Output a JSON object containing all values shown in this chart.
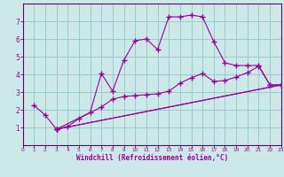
{
  "bg_color": "#cce8e8",
  "grid_color": "#99cccc",
  "line_color": "#990099",
  "xlabel": "Windchill (Refroidissement éolien,°C)",
  "xlabel_color": "#990099",
  "tick_color": "#990099",
  "spine_color": "#660066",
  "xlim": [
    0,
    23
  ],
  "ylim": [
    0,
    8
  ],
  "xtick_labels": [
    "0",
    "1",
    "2",
    "3",
    "4",
    "5",
    "6",
    "7",
    "8",
    "9",
    "10",
    "11",
    "12",
    "13",
    "14",
    "15",
    "16",
    "17",
    "18",
    "19",
    "20",
    "21",
    "22",
    "23"
  ],
  "xtick_vals": [
    0,
    1,
    2,
    3,
    4,
    5,
    6,
    7,
    8,
    9,
    10,
    11,
    12,
    13,
    14,
    15,
    16,
    17,
    18,
    19,
    20,
    21,
    22,
    23
  ],
  "ytick_vals": [
    1,
    2,
    3,
    4,
    5,
    6,
    7
  ],
  "lines": [
    {
      "x": [
        1,
        2,
        3,
        4,
        5,
        6,
        7,
        8,
        9,
        10,
        11,
        12,
        13,
        14,
        15,
        16,
        17,
        18,
        19,
        20,
        21,
        22,
        23
      ],
      "y": [
        2.25,
        1.7,
        0.9,
        1.05,
        1.5,
        1.85,
        4.05,
        3.05,
        4.8,
        5.9,
        6.0,
        5.4,
        7.25,
        7.25,
        7.35,
        7.25,
        5.85,
        4.65,
        4.5,
        4.5,
        4.5,
        3.4,
        3.4
      ],
      "markers_at": [
        1,
        2,
        3,
        4,
        5,
        6,
        7,
        8,
        9,
        10,
        11,
        12,
        13,
        14,
        15,
        16,
        17,
        18,
        19,
        20,
        21,
        22,
        23
      ]
    },
    {
      "x": [
        3,
        7,
        8,
        9,
        10,
        11,
        12,
        13,
        14,
        15,
        16,
        17,
        18,
        19,
        20,
        21,
        22,
        23
      ],
      "y": [
        0.9,
        2.15,
        2.6,
        2.75,
        2.8,
        2.85,
        2.9,
        3.05,
        3.5,
        3.8,
        4.05,
        3.6,
        3.65,
        3.85,
        4.1,
        4.45,
        3.4,
        3.4
      ],
      "markers_at": [
        3,
        7,
        8,
        9,
        10,
        11,
        12,
        13,
        14,
        15,
        16,
        17,
        18,
        19,
        20,
        21,
        22,
        23
      ]
    },
    {
      "x": [
        3,
        23
      ],
      "y": [
        0.9,
        3.4
      ],
      "markers_at": [
        3,
        23
      ]
    },
    {
      "x": [
        3,
        23
      ],
      "y": [
        0.9,
        3.4
      ],
      "markers_at": [
        3,
        23
      ]
    }
  ]
}
